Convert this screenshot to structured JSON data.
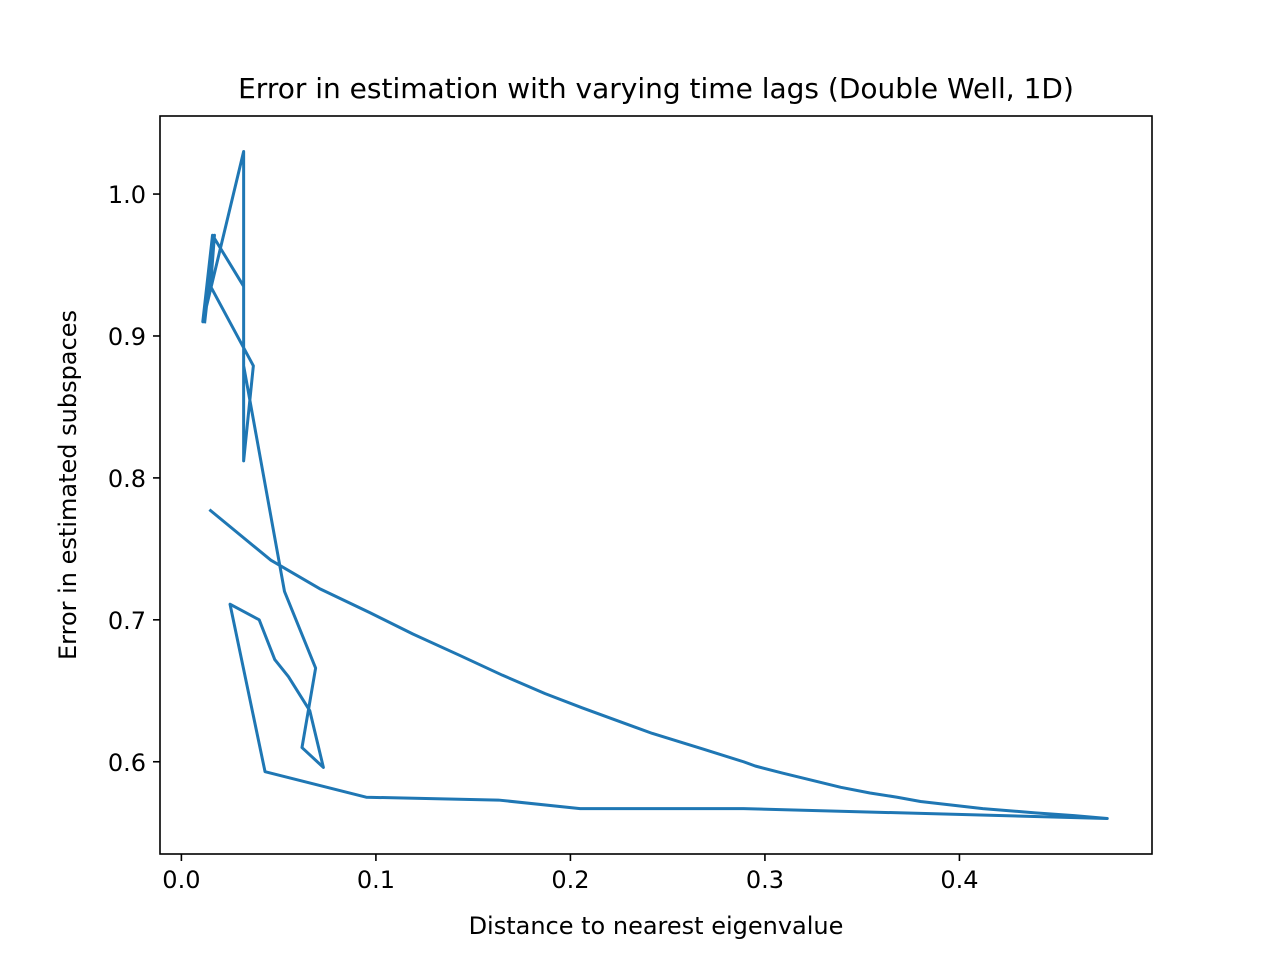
{
  "chart_data": {
    "type": "line",
    "title": "Error in estimation with varying time lags (Double Well, 1D)",
    "xlabel": "Distance to nearest eigenvalue",
    "ylabel": "Error in estimated subspaces",
    "xlim": [
      -0.011,
      0.499
    ],
    "ylim": [
      0.535,
      1.055
    ],
    "xticks": [
      0.0,
      0.1,
      0.2,
      0.3,
      0.4
    ],
    "xtick_labels": [
      "0.0",
      "0.1",
      "0.2",
      "0.3",
      "0.4"
    ],
    "yticks": [
      0.6,
      0.7,
      0.8,
      0.9,
      1.0
    ],
    "ytick_labels": [
      "0.6",
      "0.7",
      "0.8",
      "0.9",
      "1.0"
    ],
    "grid": false,
    "legend": "none",
    "line_color": "#1f77b4",
    "series": [
      {
        "x": [
          0.012,
          0.017,
          0.015,
          0.037,
          0.032,
          0.032,
          0.011,
          0.016,
          0.032,
          0.032,
          0.053,
          0.069,
          0.062,
          0.073,
          0.066,
          0.055,
          0.048,
          0.04,
          0.025,
          0.043,
          0.095,
          0.163,
          0.205,
          0.289,
          0.476,
          0.459,
          0.439,
          0.412,
          0.38,
          0.368,
          0.354,
          0.339,
          0.324,
          0.309,
          0.295,
          0.289,
          0.268,
          0.242,
          0.222,
          0.206,
          0.187,
          0.165,
          0.143,
          0.119,
          0.097,
          0.071,
          0.046,
          0.015
        ],
        "y": [
          0.91,
          0.971,
          0.935,
          0.879,
          0.812,
          1.03,
          0.91,
          0.971,
          0.935,
          0.879,
          0.72,
          0.666,
          0.61,
          0.596,
          0.636,
          0.66,
          0.672,
          0.7,
          0.711,
          0.593,
          0.575,
          0.573,
          0.567,
          0.567,
          0.56,
          0.562,
          0.564,
          0.567,
          0.572,
          0.575,
          0.578,
          0.582,
          0.587,
          0.592,
          0.597,
          0.6,
          0.609,
          0.62,
          0.63,
          0.638,
          0.648,
          0.661,
          0.675,
          0.69,
          0.705,
          0.722,
          0.742,
          0.777
        ]
      }
    ]
  }
}
